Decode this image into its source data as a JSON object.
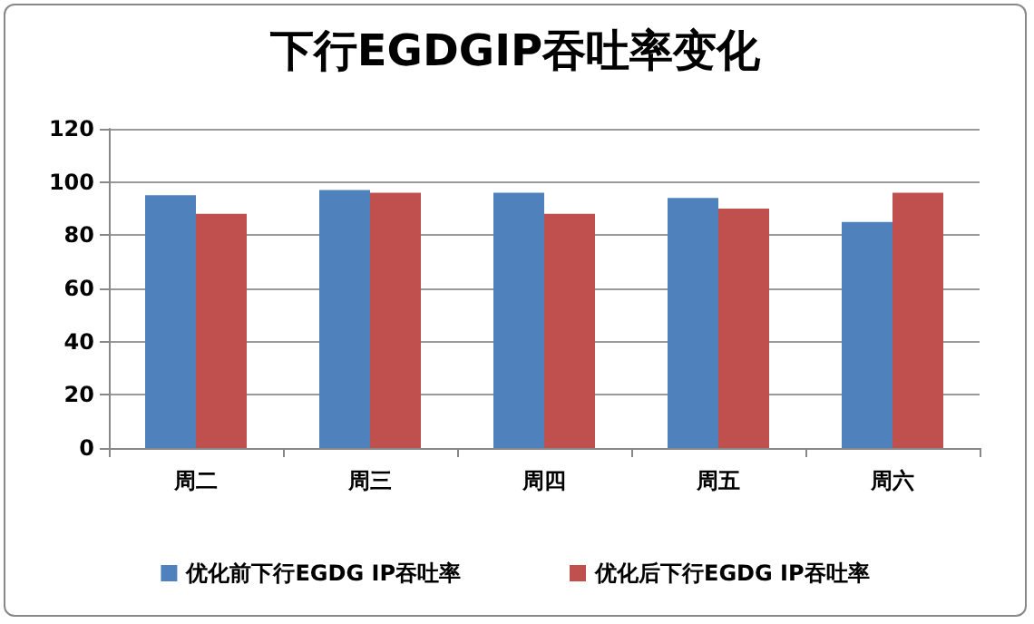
{
  "chart_data": {
    "type": "bar",
    "title": "下行EGDGIP吞吐率变化",
    "categories": [
      "周二",
      "周三",
      "周四",
      "周五",
      "周六"
    ],
    "series": [
      {
        "name": "优化前下行EGDG IP吞吐率",
        "color": "#4f81bd",
        "values": [
          95,
          97,
          96,
          94,
          85
        ]
      },
      {
        "name": "优化后下行EGDG IP吞吐率",
        "color": "#c0504d",
        "values": [
          88,
          96,
          88,
          90,
          96
        ]
      }
    ],
    "ylim": [
      0,
      120
    ],
    "yticks": [
      0,
      20,
      40,
      60,
      80,
      100,
      120
    ],
    "grid": "y",
    "legend": "bottom"
  }
}
